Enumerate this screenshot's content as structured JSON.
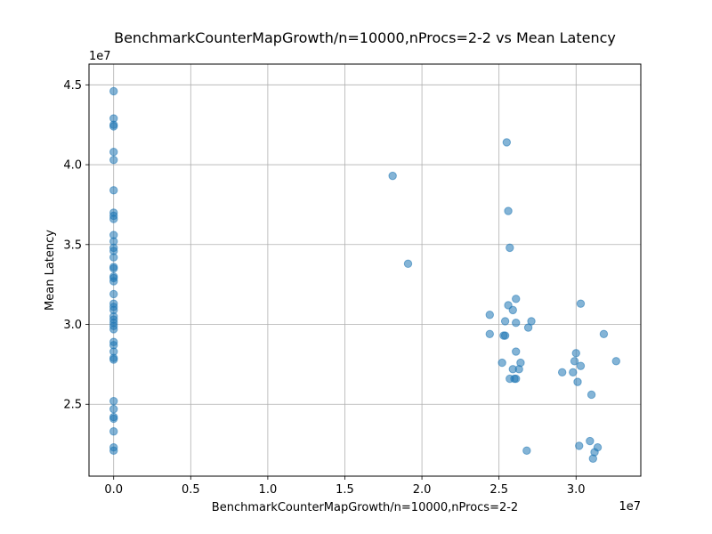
{
  "chart_data": {
    "type": "scatter",
    "title": "BenchmarkCounterMapGrowth/n=10000,nProcs=2-2 vs Mean Latency",
    "xlabel": "BenchmarkCounterMapGrowth/n=10000,nProcs=2-2",
    "ylabel": "Mean Latency",
    "x_offset_label": "1e7",
    "y_offset_label": "1e7",
    "xlim": [
      -1600000,
      34200000
    ],
    "ylim": [
      20500000,
      46300000
    ],
    "x_ticks": [
      0,
      5000000,
      10000000,
      15000000,
      20000000,
      25000000,
      30000000
    ],
    "x_tick_labels": [
      "0.0",
      "0.5",
      "1.0",
      "1.5",
      "2.0",
      "2.5",
      "3.0"
    ],
    "y_ticks": [
      25000000,
      30000000,
      35000000,
      40000000,
      45000000
    ],
    "y_tick_labels": [
      "2.5",
      "3.0",
      "3.5",
      "4.0",
      "4.5"
    ],
    "grid": true,
    "marker_color": "#1f77b4",
    "marker_alpha": 0.55,
    "points": [
      [
        0,
        44600000
      ],
      [
        0,
        42900000
      ],
      [
        0,
        42500000
      ],
      [
        0,
        42400000
      ],
      [
        0,
        40800000
      ],
      [
        0,
        40300000
      ],
      [
        0,
        38400000
      ],
      [
        0,
        37000000
      ],
      [
        0,
        36800000
      ],
      [
        0,
        36600000
      ],
      [
        0,
        35600000
      ],
      [
        0,
        35200000
      ],
      [
        0,
        34800000
      ],
      [
        0,
        34600000
      ],
      [
        0,
        34200000
      ],
      [
        0,
        33600000
      ],
      [
        0,
        33500000
      ],
      [
        0,
        33000000
      ],
      [
        0,
        32900000
      ],
      [
        0,
        32700000
      ],
      [
        0,
        31900000
      ],
      [
        0,
        31300000
      ],
      [
        0,
        31100000
      ],
      [
        0,
        30900000
      ],
      [
        0,
        30500000
      ],
      [
        0,
        30300000
      ],
      [
        0,
        30100000
      ],
      [
        0,
        29900000
      ],
      [
        0,
        29700000
      ],
      [
        0,
        28900000
      ],
      [
        0,
        28700000
      ],
      [
        0,
        28300000
      ],
      [
        0,
        27900000
      ],
      [
        0,
        27800000
      ],
      [
        0,
        25200000
      ],
      [
        0,
        24700000
      ],
      [
        0,
        24200000
      ],
      [
        0,
        24100000
      ],
      [
        0,
        23300000
      ],
      [
        0,
        22300000
      ],
      [
        0,
        22100000
      ],
      [
        18100000,
        39300000
      ],
      [
        19100000,
        33800000
      ],
      [
        25500000,
        41400000
      ],
      [
        25600000,
        37100000
      ],
      [
        25700000,
        34800000
      ],
      [
        24400000,
        30600000
      ],
      [
        24400000,
        29400000
      ],
      [
        25400000,
        30200000
      ],
      [
        25400000,
        29300000
      ],
      [
        25300000,
        29300000
      ],
      [
        25600000,
        31200000
      ],
      [
        25900000,
        30900000
      ],
      [
        26100000,
        31600000
      ],
      [
        26100000,
        30100000
      ],
      [
        27100000,
        30200000
      ],
      [
        26900000,
        29800000
      ],
      [
        26100000,
        28300000
      ],
      [
        25200000,
        27600000
      ],
      [
        26400000,
        27600000
      ],
      [
        25900000,
        27200000
      ],
      [
        26300000,
        27200000
      ],
      [
        25700000,
        26600000
      ],
      [
        26000000,
        26600000
      ],
      [
        26100000,
        26600000
      ],
      [
        26800000,
        22100000
      ],
      [
        30300000,
        31300000
      ],
      [
        31800000,
        29400000
      ],
      [
        32600000,
        27700000
      ],
      [
        30000000,
        28200000
      ],
      [
        29900000,
        27700000
      ],
      [
        30300000,
        27400000
      ],
      [
        29100000,
        27000000
      ],
      [
        29800000,
        27000000
      ],
      [
        30100000,
        26400000
      ],
      [
        31000000,
        25600000
      ],
      [
        30900000,
        22700000
      ],
      [
        30200000,
        22400000
      ],
      [
        31400000,
        22300000
      ],
      [
        31200000,
        22000000
      ],
      [
        31100000,
        21600000
      ]
    ]
  }
}
